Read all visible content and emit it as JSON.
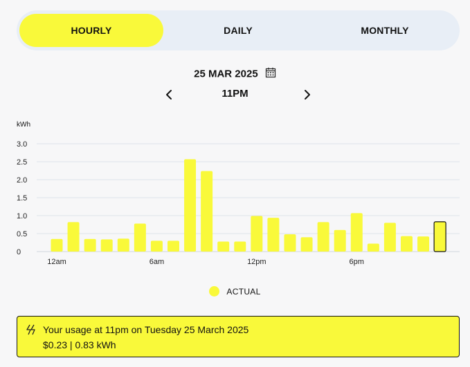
{
  "tabs": [
    {
      "label": "HOURLY",
      "active": true
    },
    {
      "label": "DAILY",
      "active": false
    },
    {
      "label": "MONTHLY",
      "active": false
    }
  ],
  "date": "25 MAR 2025",
  "time": "11PM",
  "icons": {
    "calendar": "calendar-icon",
    "prev": "chevron-left-icon",
    "next": "chevron-right-icon",
    "info": "lightning-icon"
  },
  "colors": {
    "bar": "#f9f93a",
    "accent": "#f9f93a",
    "tabs_background": "#e8eef6",
    "selected_bar_border": "#111111"
  },
  "chart_data": {
    "type": "bar",
    "ylabel": "kWh",
    "ylim": [
      0,
      3.0
    ],
    "yticks": [
      "3.0",
      "2.5",
      "2.0",
      "1.5",
      "1.0",
      "0.5",
      "0"
    ],
    "xtick_labels": [
      "12am",
      "6am",
      "12pm",
      "6pm"
    ],
    "categories": [
      "12am",
      "1am",
      "2am",
      "3am",
      "4am",
      "5am",
      "6am",
      "7am",
      "8am",
      "9am",
      "10am",
      "11am",
      "12pm",
      "1pm",
      "2pm",
      "3pm",
      "4pm",
      "5pm",
      "6pm",
      "7pm",
      "8pm",
      "9pm",
      "10pm",
      "11pm"
    ],
    "values": [
      0.35,
      0.82,
      0.35,
      0.34,
      0.36,
      0.78,
      0.3,
      0.3,
      2.57,
      2.24,
      0.28,
      0.28,
      0.99,
      0.94,
      0.48,
      0.4,
      0.82,
      0.6,
      1.07,
      0.22,
      0.8,
      0.43,
      0.42,
      0.83
    ],
    "selected_index": 23,
    "grid": true,
    "legend": "bottom-center",
    "series": [
      {
        "name": "ACTUAL"
      }
    ]
  },
  "legend_label": "ACTUAL",
  "info": {
    "line1": "Your usage at 11pm on Tuesday 25 March 2025",
    "line2": "$0.23 | 0.83 kWh"
  }
}
